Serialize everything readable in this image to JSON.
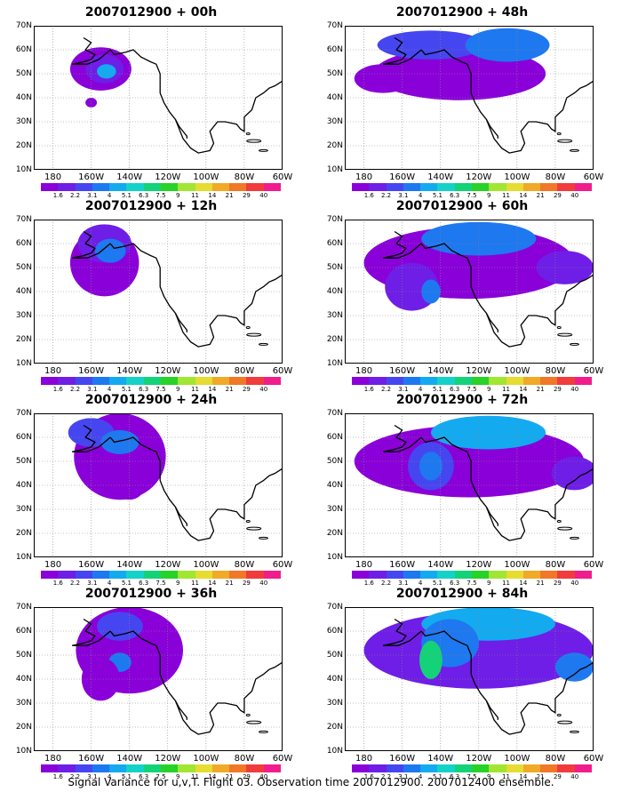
{
  "panels": [
    {
      "title": "2007012900 + 00h"
    },
    {
      "title": "2007012900 + 48h"
    },
    {
      "title": "2007012900 + 12h"
    },
    {
      "title": "2007012900 + 60h"
    },
    {
      "title": "2007012900 + 24h"
    },
    {
      "title": "2007012900 + 72h"
    },
    {
      "title": "2007012900 + 36h"
    },
    {
      "title": "2007012900 + 84h"
    }
  ],
  "lat_labels": [
    "70N",
    "60N",
    "50N",
    "40N",
    "30N",
    "20N",
    "10N"
  ],
  "lon_labels": [
    "180",
    "160W",
    "140W",
    "120W",
    "100W",
    "80W",
    "60W"
  ],
  "colorbar": {
    "colors": [
      "#8a00d9",
      "#6e1ee6",
      "#4646f0",
      "#1e78f0",
      "#14aaf0",
      "#14d2c8",
      "#14d278",
      "#28d228",
      "#a0e632",
      "#e6dc32",
      "#f0aa28",
      "#f07828",
      "#f03c3c",
      "#f01e8c"
    ],
    "labels": [
      "1.6",
      "2.2",
      "3.1",
      "4",
      "5.1",
      "6.3",
      "7.5",
      "9",
      "11",
      "14",
      "21",
      "29",
      "40"
    ]
  },
  "caption": "Signal Variance for u,v,T. Flight 03. Observation time 2007012900. 2007012400 ensemble."
}
